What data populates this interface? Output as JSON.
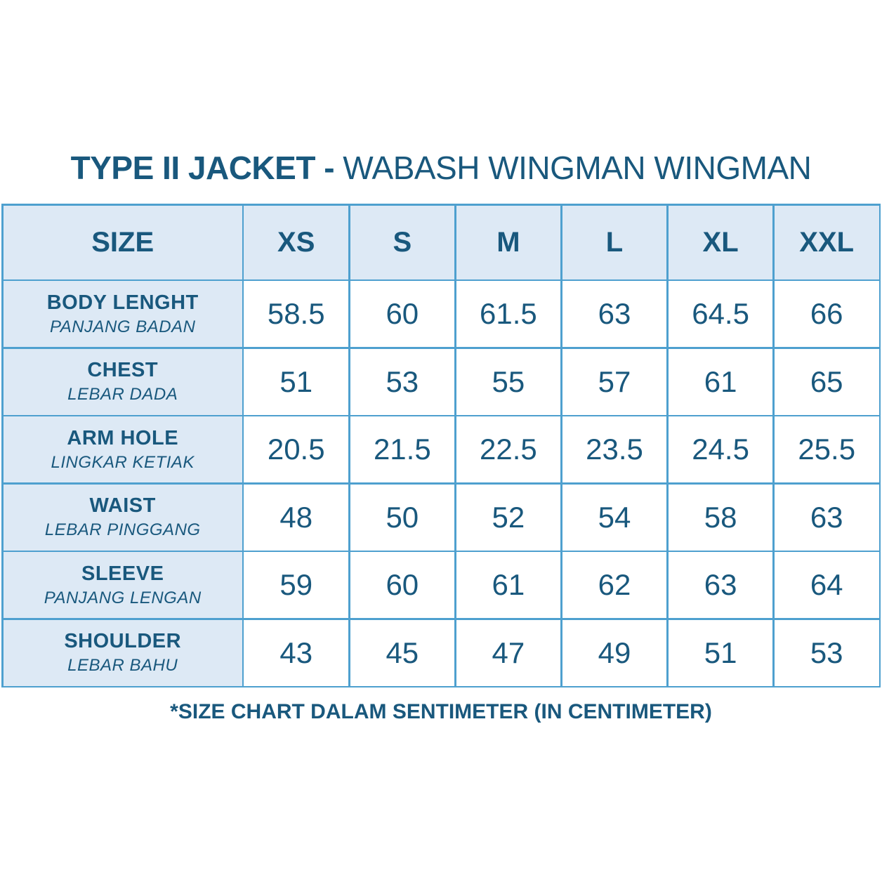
{
  "page": {
    "title_bold": "TYPE II JACKET -",
    "title_regular": "WABASH WINGMAN WINGMAN"
  },
  "table": {
    "header": [
      "SIZE",
      "XS",
      "S",
      "M",
      "L",
      "XL",
      "XXL"
    ],
    "rows": [
      {
        "label": "BODY LENGHT",
        "sublabel": "PANJANG BADAN",
        "values": [
          "58.5",
          "60",
          "61.5",
          "63",
          "64.5",
          "66"
        ]
      },
      {
        "label": "CHEST",
        "sublabel": "LEBAR DADA",
        "values": [
          "51",
          "53",
          "55",
          "57",
          "61",
          "65"
        ]
      },
      {
        "label": "ARM HOLE",
        "sublabel": "LINGKAR KETIAK",
        "values": [
          "20.5",
          "21.5",
          "22.5",
          "23.5",
          "24.5",
          "25.5"
        ]
      },
      {
        "label": "WAIST",
        "sublabel": "LEBAR PINGGANG",
        "values": [
          "48",
          "50",
          "52",
          "54",
          "58",
          "63"
        ]
      },
      {
        "label": "SLEEVE",
        "sublabel": "PANJANG LENGAN",
        "values": [
          "59",
          "60",
          "61",
          "62",
          "63",
          "64"
        ]
      },
      {
        "label": "SHOULDER",
        "sublabel": "LEBAR BAHU",
        "values": [
          "43",
          "45",
          "47",
          "49",
          "51",
          "53"
        ]
      }
    ]
  },
  "footnote": "*SIZE CHART DALAM SENTIMETER (IN CENTIMETER)",
  "colors": {
    "accent_text": "#19587d",
    "cell_fill": "#dde9f5",
    "grid_line": "#4ea0cf",
    "background": "#ffffff"
  }
}
